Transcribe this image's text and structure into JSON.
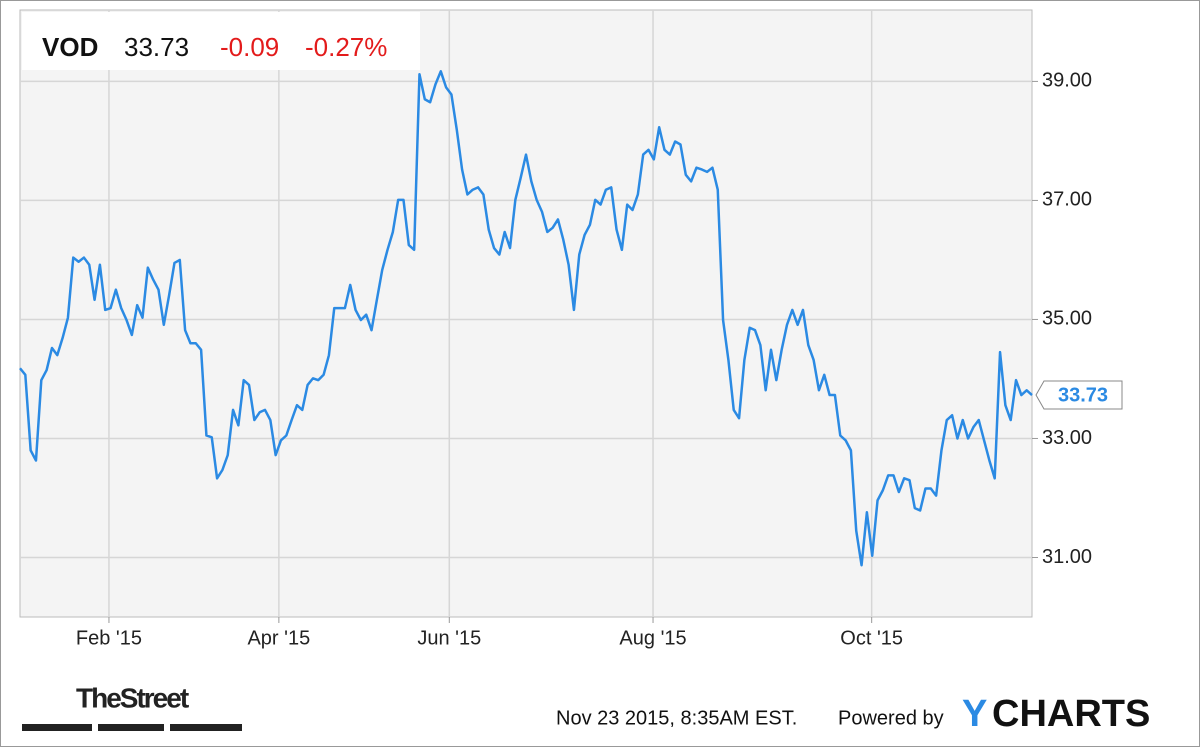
{
  "chart_data": {
    "type": "line",
    "ticker": "VOD",
    "price": "33.73",
    "change": "-0.09",
    "change_pct": "-0.27%",
    "series": [
      {
        "name": "VOD",
        "color": "#2b8ae3",
        "values": [
          34.18,
          34.07,
          32.8,
          32.63,
          33.98,
          34.15,
          34.52,
          34.4,
          34.69,
          35.03,
          36.04,
          35.97,
          36.04,
          35.92,
          35.33,
          35.92,
          35.16,
          35.19,
          35.5,
          35.19,
          34.99,
          34.74,
          35.24,
          35.03,
          35.87,
          35.67,
          35.5,
          34.91,
          35.41,
          35.95,
          36.0,
          34.82,
          34.6,
          34.6,
          34.49,
          33.05,
          33.02,
          32.33,
          32.47,
          32.72,
          33.48,
          33.22,
          33.98,
          33.9,
          33.31,
          33.44,
          33.48,
          33.31,
          32.72,
          32.97,
          33.05,
          33.31,
          33.56,
          33.48,
          33.9,
          34.01,
          33.98,
          34.07,
          34.4,
          35.19,
          35.19,
          35.19,
          35.58,
          35.16,
          34.99,
          35.08,
          34.82,
          35.33,
          35.83,
          36.17,
          36.47,
          37.01,
          37.01,
          36.25,
          36.17,
          39.12,
          38.7,
          38.65,
          38.95,
          39.17,
          38.9,
          38.78,
          38.19,
          37.52,
          37.1,
          37.18,
          37.22,
          37.1,
          36.51,
          36.2,
          36.09,
          36.47,
          36.2,
          37.01,
          37.38,
          37.77,
          37.32,
          37.01,
          36.81,
          36.47,
          36.54,
          36.68,
          36.34,
          35.92,
          35.16,
          36.09,
          36.42,
          36.59,
          37.01,
          36.93,
          37.18,
          37.22,
          36.51,
          36.17,
          36.93,
          36.84,
          37.1,
          37.77,
          37.85,
          37.69,
          38.23,
          37.85,
          37.77,
          37.99,
          37.94,
          37.43,
          37.32,
          37.55,
          37.52,
          37.48,
          37.55,
          37.18,
          34.99,
          34.32,
          33.48,
          33.34,
          34.32,
          34.86,
          34.82,
          34.57,
          33.81,
          34.49,
          33.98,
          34.49,
          34.91,
          35.16,
          34.91,
          35.16,
          34.57,
          34.32,
          33.81,
          34.07,
          33.73,
          33.73,
          33.05,
          32.97,
          32.8,
          31.45,
          30.87,
          31.76,
          31.03,
          31.96,
          32.13,
          32.38,
          32.38,
          32.1,
          32.33,
          32.3,
          31.83,
          31.79,
          32.16,
          32.16,
          32.04,
          32.8,
          33.31,
          33.39,
          33.0,
          33.31,
          33.0,
          33.19,
          33.31,
          32.97,
          32.63,
          32.33,
          34.45,
          33.56,
          33.31,
          33.98,
          33.73,
          33.81,
          33.73
        ]
      }
    ],
    "xlim": [
      0,
      190
    ],
    "xticks": [
      {
        "value": 16.7,
        "label": "Feb '15"
      },
      {
        "value": 48.6,
        "label": "Apr '15"
      },
      {
        "value": 80.6,
        "label": "Jun '15"
      },
      {
        "value": 118.85,
        "label": "Aug '15"
      },
      {
        "value": 159.9,
        "label": "Oct '15"
      }
    ],
    "ylim": [
      30,
      40.2
    ],
    "yticks": [
      {
        "value": 31,
        "label": "31.00"
      },
      {
        "value": 33,
        "label": "33.00"
      },
      {
        "value": 35,
        "label": "35.00"
      },
      {
        "value": 37,
        "label": "37.00"
      },
      {
        "value": 39,
        "label": "39.00"
      }
    ],
    "grid": true,
    "source_logo": "TheStreet",
    "timestamp": "Nov 23 2015, 8:35AM EST.",
    "powered_by": "Powered by",
    "brand_first": "Y",
    "brand_rest": "CHARTS"
  }
}
